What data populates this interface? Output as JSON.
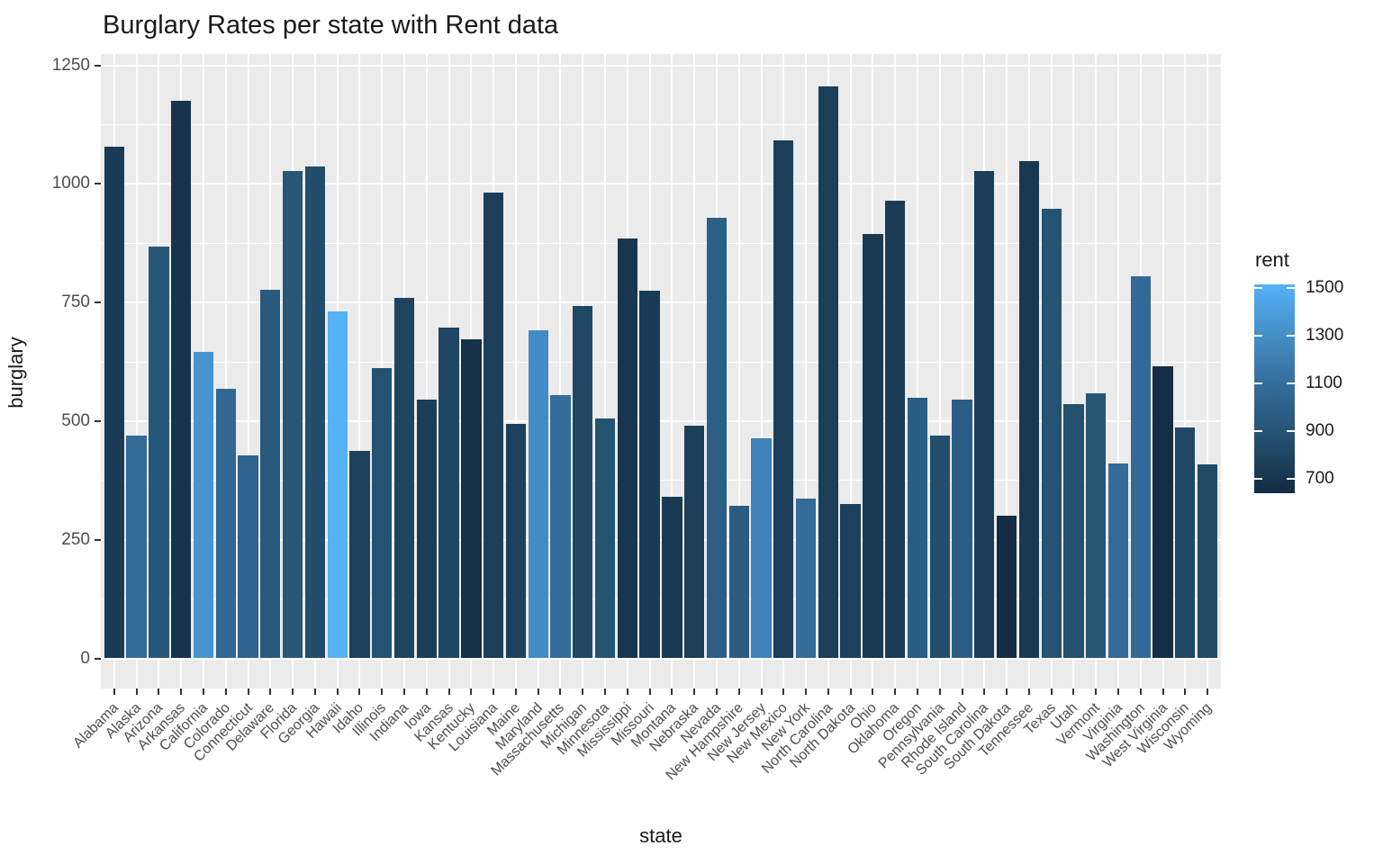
{
  "title": "Burglary Rates per state with Rent data",
  "x_axis_title": "state",
  "y_axis_title": "burglary",
  "y_tick_labels": [
    "0",
    "250",
    "500",
    "750",
    "1000",
    "1250"
  ],
  "legend": {
    "title": "rent",
    "tick_labels": [
      "1500",
      "1300",
      "1100",
      "900",
      "700"
    ],
    "tick_values": [
      1500,
      1300,
      1100,
      900,
      700
    ]
  },
  "colors": {
    "panel_background": "#EBEBEB",
    "gridline": "#FFFFFF",
    "axis_tick": "#333333",
    "axis_text": "#4D4D4D",
    "text": "#1a1a1a",
    "gradient_low": "#132B43",
    "gradient_high": "#56B1F7"
  },
  "chart_data": {
    "type": "bar",
    "title": "Burglary Rates per state with Rent data",
    "xlabel": "state",
    "ylabel": "burglary",
    "ylim": [
      0,
      1272
    ],
    "y_major_ticks": [
      0,
      250,
      500,
      750,
      1000,
      1250
    ],
    "y_minor_ticks": [
      125,
      375,
      625,
      875,
      1125
    ],
    "grid": true,
    "legend_position": "right",
    "color_scale": {
      "name": "rent",
      "low_color": "#132B43",
      "high_color": "#56B1F7",
      "domain": [
        640,
        1500
      ],
      "legend_breaks": [
        700,
        900,
        1100,
        1300,
        1500
      ]
    },
    "categories": [
      "Alabama",
      "Alaska",
      "Arizona",
      "Arkansas",
      "California",
      "Colorado",
      "Connecticut",
      "Delaware",
      "Florida",
      "Georgia",
      "Hawaii",
      "Idaho",
      "Illinois",
      "Indiana",
      "Iowa",
      "Kansas",
      "Kentucky",
      "Louisiana",
      "Maine",
      "Maryland",
      "Massachusetts",
      "Michigan",
      "Minnesota",
      "Mississippi",
      "Missouri",
      "Montana",
      "Nebraska",
      "Nevada",
      "New Hampshire",
      "New Jersey",
      "New Mexico",
      "New York",
      "North Carolina",
      "North Dakota",
      "Ohio",
      "Oklahoma",
      "Oregon",
      "Pennsylvania",
      "Rhode Island",
      "South Carolina",
      "South Dakota",
      "Tennessee",
      "Texas",
      "Utah",
      "Vermont",
      "Virginia",
      "Washington",
      "West Virginia",
      "Wisconsin",
      "Wyoming"
    ],
    "series": [
      {
        "name": "burglary",
        "values": [
          1078,
          470,
          868,
          1176,
          645,
          568,
          427,
          776,
          1027,
          1037,
          731,
          437,
          611,
          760,
          546,
          698,
          673,
          981,
          495,
          692,
          554,
          742,
          505,
          885,
          775,
          341,
          490,
          928,
          322,
          464,
          1092,
          337,
          1206,
          326,
          895,
          965,
          549,
          469,
          546,
          1027,
          301,
          1048,
          948,
          536,
          558,
          411,
          805,
          615,
          486,
          409
        ]
      },
      {
        "name": "rent",
        "values": [
          735,
          1075,
          915,
          690,
          1320,
          1050,
          1020,
          940,
          910,
          845,
          1500,
          770,
          875,
          790,
          750,
          800,
          675,
          755,
          770,
          1275,
          1085,
          815,
          885,
          705,
          735,
          725,
          755,
          980,
          960,
          1220,
          755,
          1075,
          760,
          770,
          725,
          740,
          960,
          850,
          975,
          750,
          640,
          725,
          885,
          860,
          905,
          1070,
          1065,
          655,
          815,
          825
        ]
      }
    ]
  }
}
